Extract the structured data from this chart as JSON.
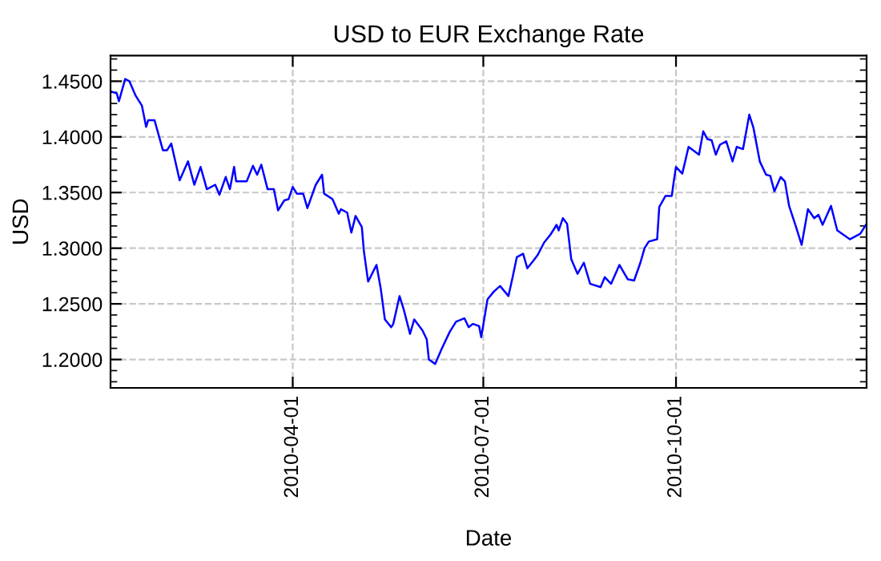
{
  "chart_data": {
    "type": "line",
    "title": "USD to EUR Exchange Rate",
    "xlabel": "Date",
    "ylabel": "USD",
    "x": [
      "2010-01-04",
      "2010-01-07",
      "2010-01-08",
      "2010-01-11",
      "2010-01-13",
      "2010-01-16",
      "2010-01-19",
      "2010-01-21",
      "2010-01-22",
      "2010-01-25",
      "2010-01-29",
      "2010-01-31",
      "2010-02-02",
      "2010-02-06",
      "2010-02-10",
      "2010-02-13",
      "2010-02-16",
      "2010-02-19",
      "2010-02-23",
      "2010-02-25",
      "2010-02-28",
      "2010-03-02",
      "2010-03-04",
      "2010-03-05",
      "2010-03-10",
      "2010-03-13",
      "2010-03-15",
      "2010-03-17",
      "2010-03-20",
      "2010-03-23",
      "2010-03-25",
      "2010-03-28",
      "2010-03-30",
      "2010-04-01",
      "2010-04-03",
      "2010-04-06",
      "2010-04-08",
      "2010-04-12",
      "2010-04-15",
      "2010-04-16",
      "2010-04-20",
      "2010-04-23",
      "2010-04-24",
      "2010-04-27",
      "2010-04-29",
      "2010-05-01",
      "2010-05-04",
      "2010-05-05",
      "2010-05-07",
      "2010-05-11",
      "2010-05-13",
      "2010-05-15",
      "2010-05-18",
      "2010-05-19",
      "2010-05-22",
      "2010-05-24",
      "2010-05-27",
      "2010-05-29",
      "2010-06-02",
      "2010-06-04",
      "2010-06-05",
      "2010-06-08",
      "2010-06-11",
      "2010-06-15",
      "2010-06-18",
      "2010-06-22",
      "2010-06-24",
      "2010-06-26",
      "2010-06-29",
      "2010-06-30",
      "2010-07-03",
      "2010-07-06",
      "2010-07-09",
      "2010-07-13",
      "2010-07-15",
      "2010-07-17",
      "2010-07-20",
      "2010-07-22",
      "2010-07-25",
      "2010-07-27",
      "2010-07-30",
      "2010-08-02",
      "2010-08-05",
      "2010-08-06",
      "2010-08-08",
      "2010-08-10",
      "2010-08-12",
      "2010-08-15",
      "2010-08-18",
      "2010-08-21",
      "2010-08-26",
      "2010-08-28",
      "2010-08-31",
      "2010-09-04",
      "2010-09-08",
      "2010-09-11",
      "2010-09-14",
      "2010-09-16",
      "2010-09-18",
      "2010-09-22",
      "2010-09-23",
      "2010-09-26",
      "2010-09-29",
      "2010-09-30",
      "2010-10-01",
      "2010-10-04",
      "2010-10-07",
      "2010-10-12",
      "2010-10-14",
      "2010-10-16",
      "2010-10-18",
      "2010-10-20",
      "2010-10-22",
      "2010-10-25",
      "2010-10-28",
      "2010-10-30",
      "2010-11-02",
      "2010-11-05",
      "2010-11-07",
      "2010-11-10",
      "2010-11-13",
      "2010-11-15",
      "2010-11-17",
      "2010-11-20",
      "2010-11-22",
      "2010-11-24",
      "2010-11-27",
      "2010-11-30",
      "2010-12-03",
      "2010-12-06",
      "2010-12-08",
      "2010-12-10",
      "2010-12-14",
      "2010-12-17",
      "2010-12-23",
      "2010-12-28",
      "2010-12-31"
    ],
    "series": [
      {
        "color": "#0000ff",
        "values": [
          1.441,
          1.439,
          1.432,
          1.452,
          1.45,
          1.437,
          1.428,
          1.409,
          1.415,
          1.415,
          1.388,
          1.388,
          1.394,
          1.361,
          1.378,
          1.357,
          1.373,
          1.353,
          1.357,
          1.348,
          1.364,
          1.353,
          1.373,
          1.36,
          1.36,
          1.374,
          1.366,
          1.375,
          1.353,
          1.353,
          1.334,
          1.343,
          1.344,
          1.355,
          1.349,
          1.349,
          1.336,
          1.357,
          1.366,
          1.349,
          1.344,
          1.331,
          1.335,
          1.332,
          1.314,
          1.329,
          1.319,
          1.297,
          1.27,
          1.285,
          1.264,
          1.236,
          1.229,
          1.232,
          1.257,
          1.245,
          1.223,
          1.236,
          1.226,
          1.218,
          1.2,
          1.196,
          1.209,
          1.225,
          1.234,
          1.237,
          1.229,
          1.232,
          1.23,
          1.22,
          1.254,
          1.261,
          1.266,
          1.257,
          1.274,
          1.292,
          1.295,
          1.282,
          1.289,
          1.294,
          1.305,
          1.312,
          1.321,
          1.316,
          1.327,
          1.322,
          1.29,
          1.277,
          1.287,
          1.268,
          1.265,
          1.274,
          1.268,
          1.285,
          1.272,
          1.271,
          1.287,
          1.3,
          1.306,
          1.308,
          1.337,
          1.347,
          1.347,
          1.361,
          1.373,
          1.367,
          1.391,
          1.384,
          1.405,
          1.398,
          1.397,
          1.384,
          1.393,
          1.396,
          1.378,
          1.391,
          1.389,
          1.42,
          1.408,
          1.378,
          1.366,
          1.365,
          1.351,
          1.364,
          1.36,
          1.338,
          1.321,
          1.303,
          1.335,
          1.327,
          1.33,
          1.321,
          1.338,
          1.316,
          1.308,
          1.313,
          1.322
        ]
      }
    ],
    "xlim": [
      "2010-01-04",
      "2010-12-31"
    ],
    "xticks": [
      {
        "value": "2010-04-01",
        "label": "2010-04-01"
      },
      {
        "value": "2010-07-01",
        "label": "2010-07-01"
      },
      {
        "value": "2010-10-01",
        "label": "2010-10-01"
      }
    ],
    "ylim": [
      1.1745,
      1.473
    ],
    "yticks": [
      {
        "value": 1.2,
        "label": "1.2000"
      },
      {
        "value": 1.25,
        "label": "1.2500"
      },
      {
        "value": 1.3,
        "label": "1.3000"
      },
      {
        "value": 1.35,
        "label": "1.3500"
      },
      {
        "value": 1.4,
        "label": "1.4000"
      },
      {
        "value": 1.45,
        "label": "1.4500"
      }
    ],
    "grid": true,
    "line_style": "solid",
    "marker": "none"
  }
}
